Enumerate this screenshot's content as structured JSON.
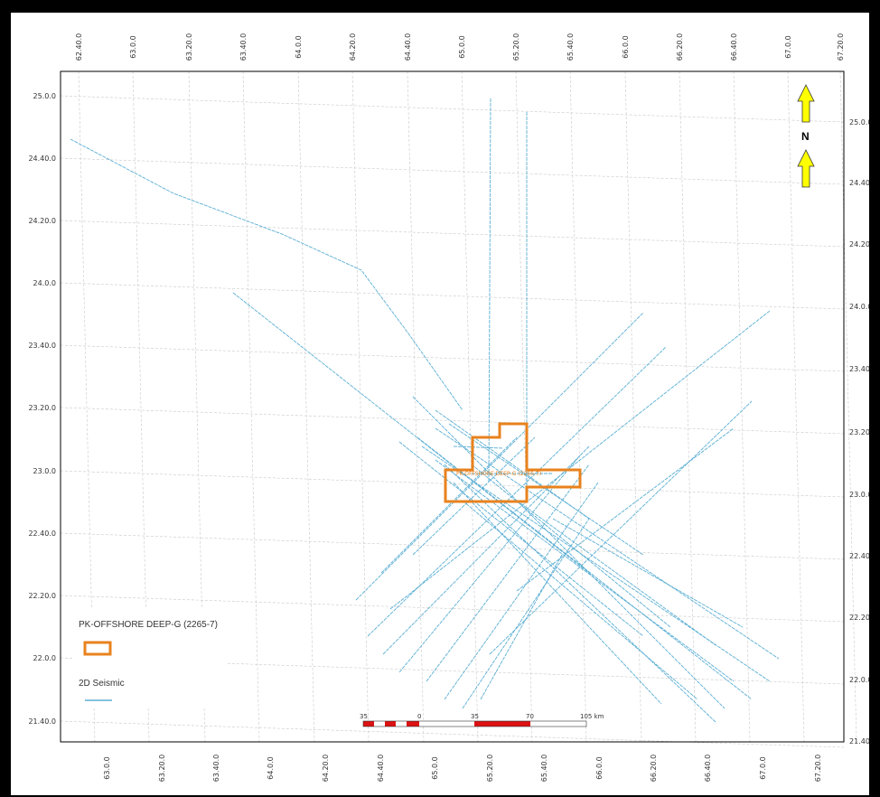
{
  "map": {
    "top_axis_labels": [
      "62.40.0",
      "63.0.0",
      "63.20.0",
      "63.40.0",
      "64.0.0",
      "64.20.0",
      "64.40.0",
      "65.0.0",
      "65.20.0",
      "65.40.0",
      "66.0.0",
      "66.20.0",
      "66.40.0",
      "67.0.0",
      "67.20.0"
    ],
    "bottom_axis_labels": [
      "63.0.0",
      "63.20.0",
      "63.40.0",
      "64.0.0",
      "64.20.0",
      "64.40.0",
      "65.0.0",
      "65.20.0",
      "65.40.0",
      "66.0.0",
      "66.20.0",
      "66.40.0",
      "67.0.0",
      "67.20.0"
    ],
    "left_axis_labels": [
      "25.0.0",
      "24.40.0",
      "24.20.0",
      "24.0.0",
      "23.40.0",
      "23.20.0",
      "23.0.0",
      "22.40.0",
      "22.20.0",
      "22.0.0",
      "21.40.0"
    ],
    "right_axis_labels": [
      "25.0.0",
      "24.40.0",
      "24.20.0",
      "24.0.0",
      "23.40.0",
      "23.20.0",
      "23.0.0",
      "22.40.0",
      "22.20.0",
      "22.0.0",
      "21.40.0"
    ],
    "north_label": "N",
    "block_label": "PK-OFFSHORE DEEP-G (2265-7)",
    "colors": {
      "seismic": "#5aaed3",
      "block_outline": "#e8821e",
      "grid": "#c8c8c8",
      "north_arrow": "#ffff00",
      "scalebar_red": "#dd1111"
    }
  },
  "legend": {
    "block_title": "PK-OFFSHORE DEEP-G (2265-7)",
    "seismic_title": "2D Seismic"
  },
  "scalebar": {
    "labels": [
      "35",
      "0",
      "35",
      "70",
      "105 km"
    ]
  }
}
